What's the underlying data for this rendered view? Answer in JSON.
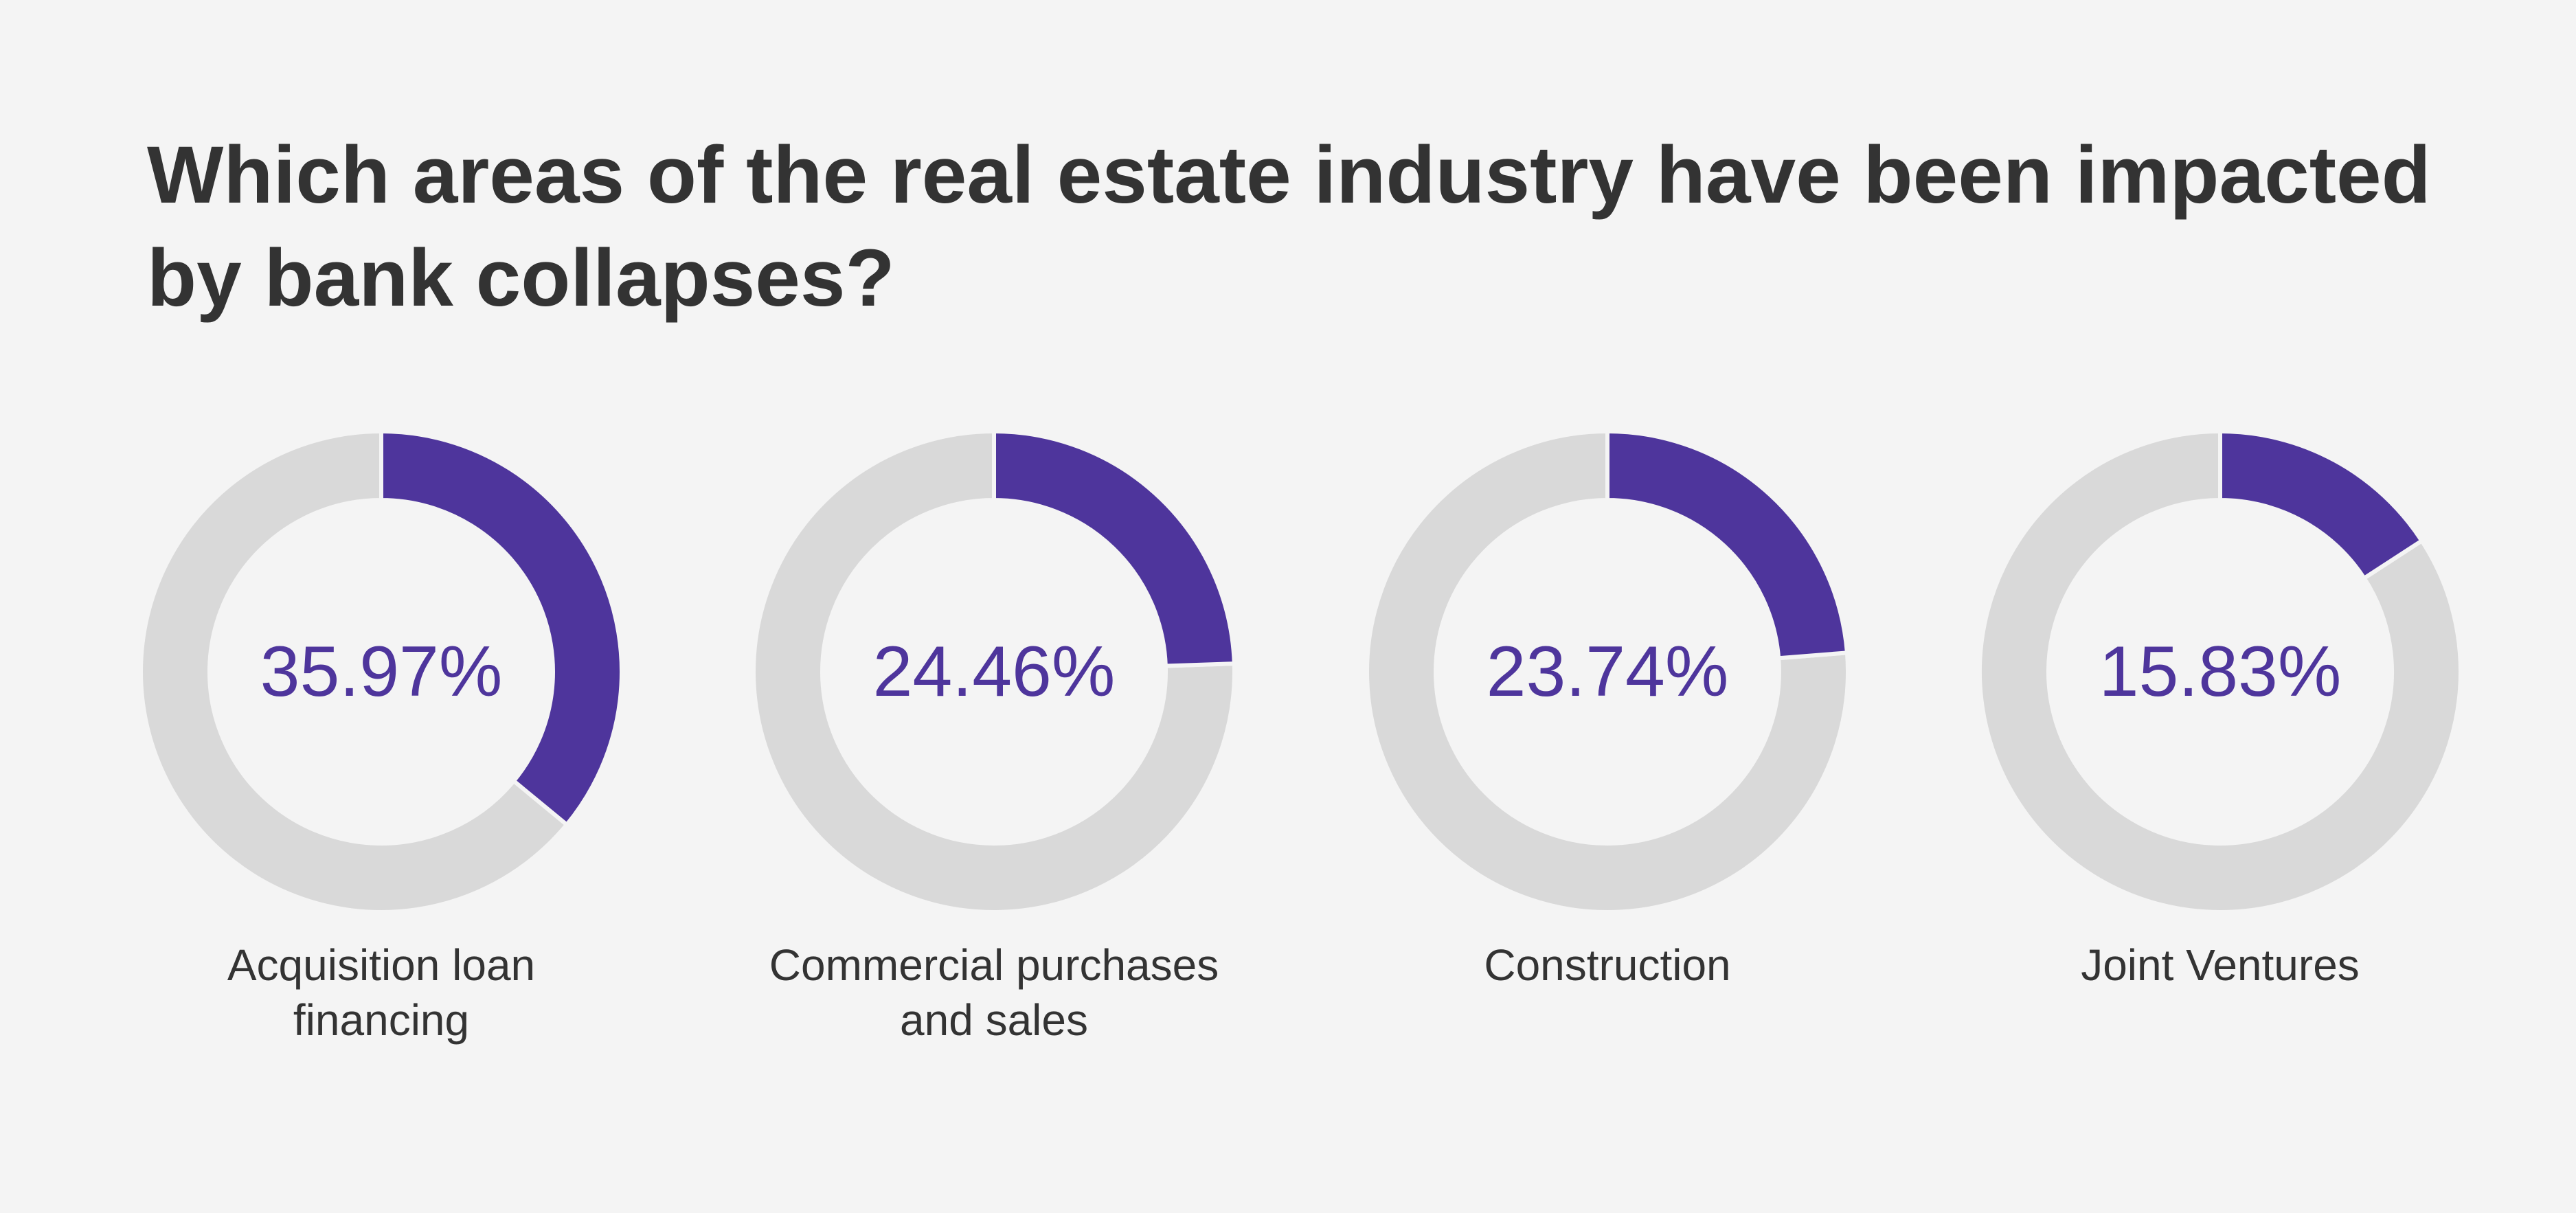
{
  "chart_data": {
    "type": "pie",
    "title": "Which areas of the real estate industry have been impacted by bank collapses?",
    "categories": [
      "Acquisition loan financing",
      "Commercial purchases and sales",
      "Construction",
      "Joint Ventures"
    ],
    "values": [
      35.97,
      24.46,
      23.74,
      15.83
    ],
    "value_labels": [
      "35.97%",
      "24.46%",
      "23.74%",
      "15.83%"
    ],
    "category_labels": [
      "Acquisition loan\nfinancing",
      "Commercial purchases\nand sales",
      "Construction",
      "Joint Ventures"
    ],
    "colors": {
      "highlight": "#4e359c",
      "remainder": "#d9d9d9",
      "separator": "#f4f4f4",
      "title_text": "#333333",
      "value_text": "#4e359c",
      "label_text": "#333333",
      "background": "#f4f4f4"
    }
  }
}
